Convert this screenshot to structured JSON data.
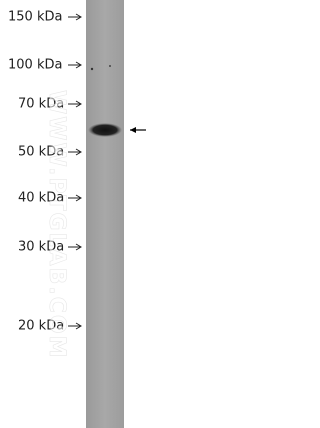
{
  "markers": [
    {
      "label": "150 kDa"
    },
    {
      "label": "100 kDa"
    },
    {
      "label": "70 kDa"
    },
    {
      "label": "50 kDa"
    },
    {
      "label": "40 kDa"
    },
    {
      "label": "30 kDa"
    },
    {
      "label": "20 kDa"
    }
  ],
  "watermark": "WWW.PTGLAB.COM"
}
